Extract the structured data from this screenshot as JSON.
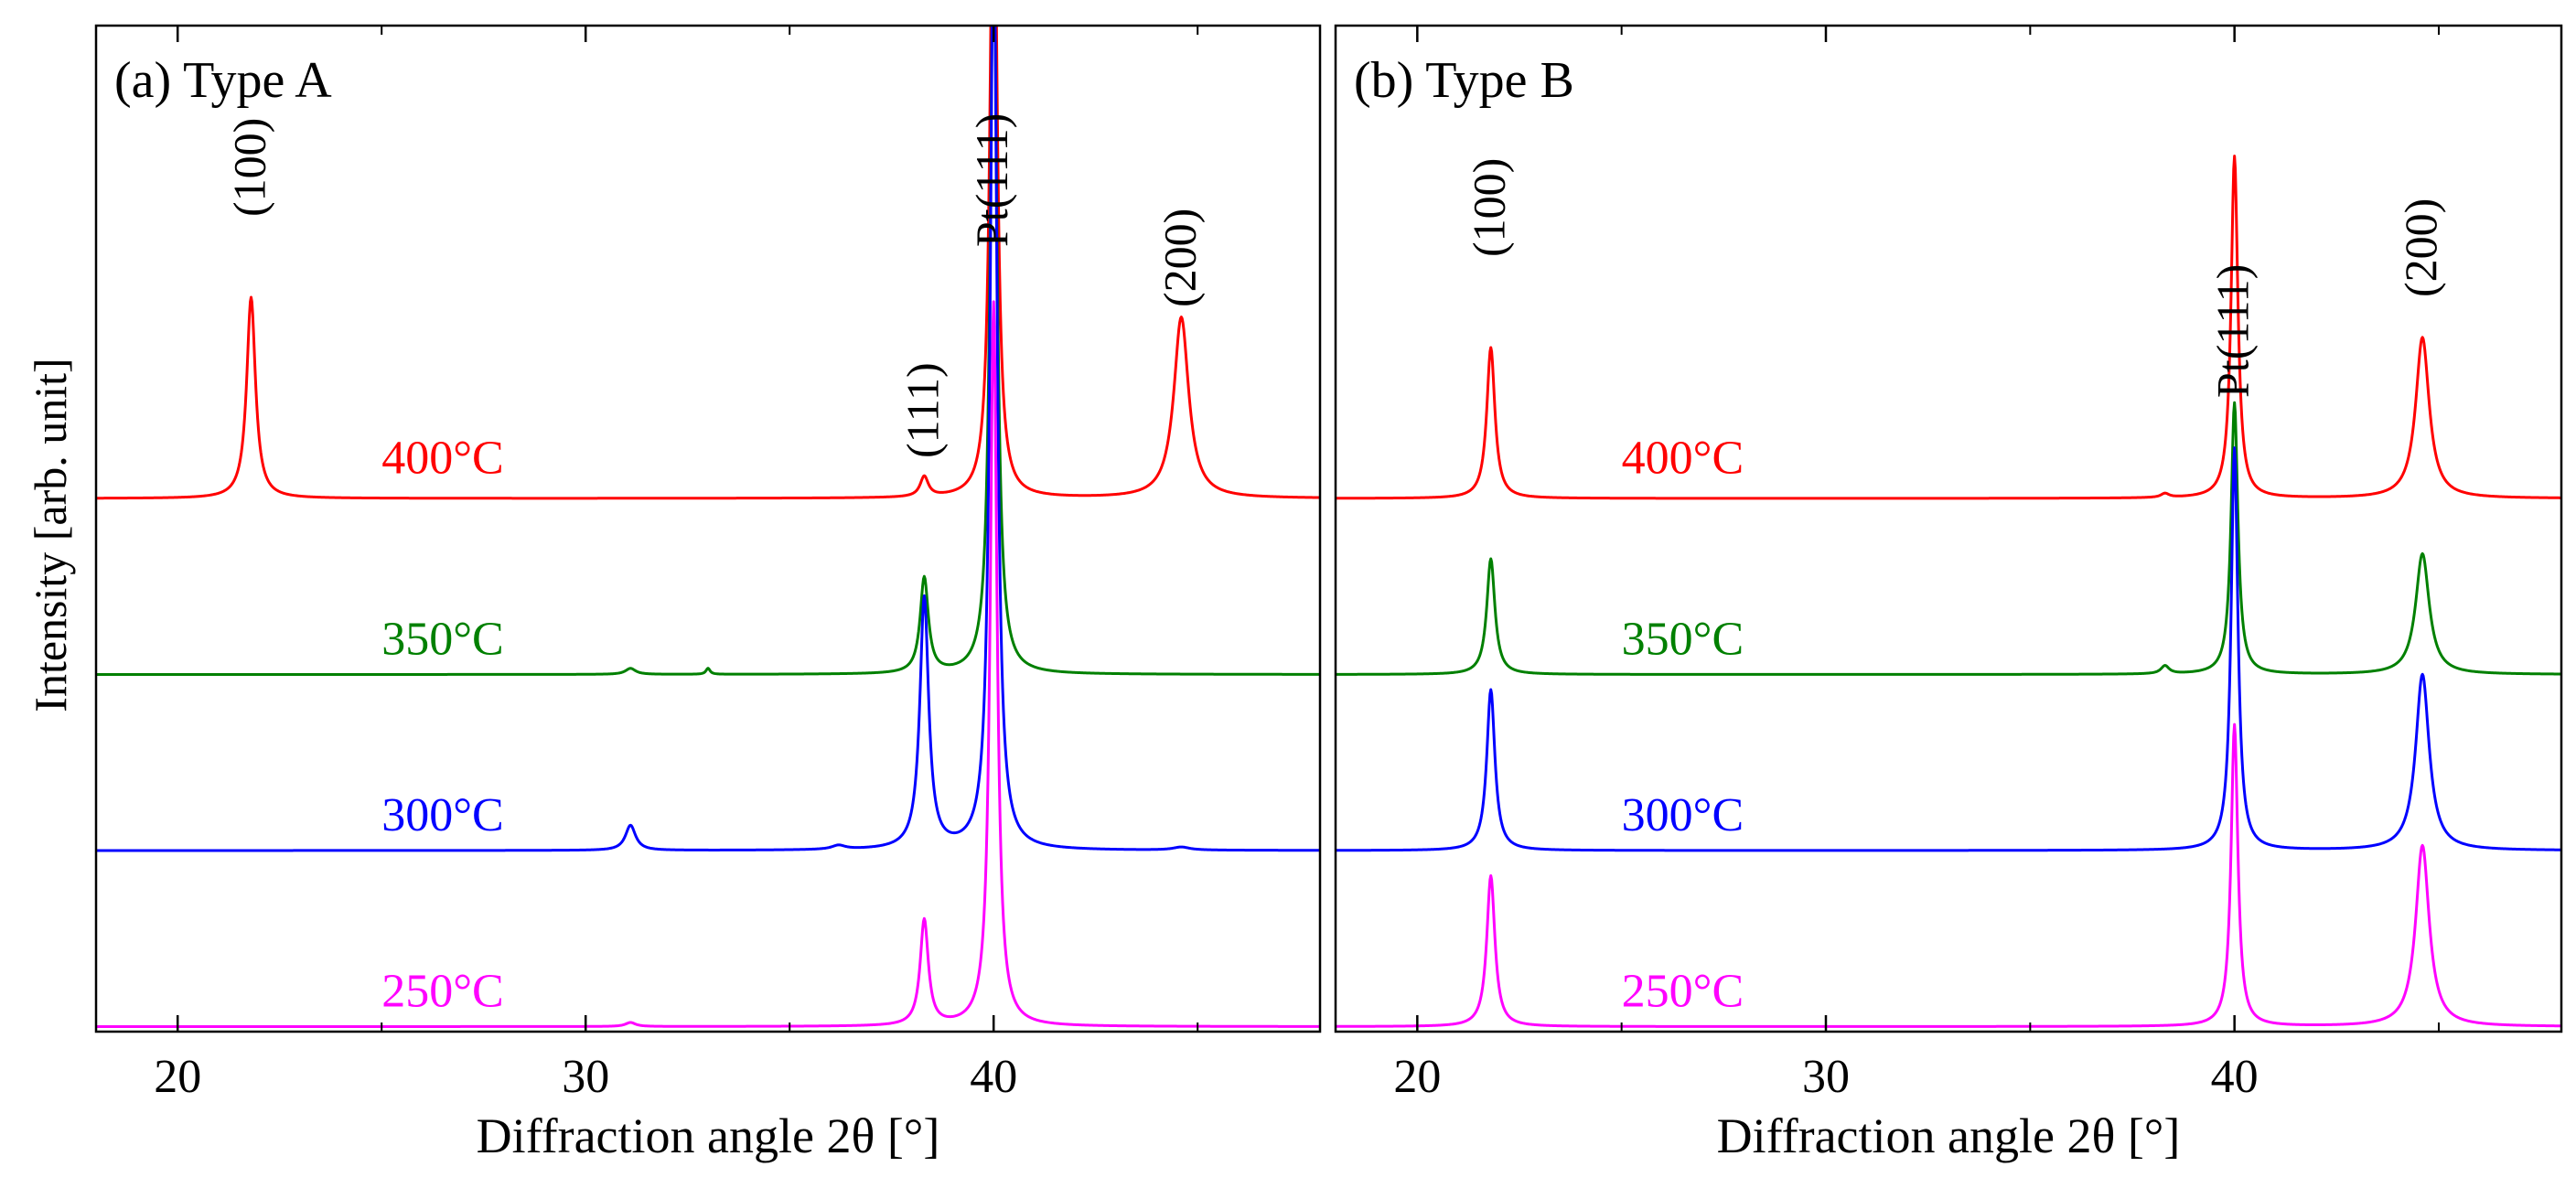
{
  "chart_data": {
    "type": "line",
    "ylabel": "Intensity [arb. unit]",
    "xlim": [
      18,
      48
    ],
    "x_ticks": [
      20,
      30,
      40
    ],
    "x_minor_step": 5,
    "ylim": [
      0,
      1
    ],
    "series_colors": {
      "400°C": "#ff0000",
      "350°C": "#008000",
      "300°C": "#0000ff",
      "250°C": "#ff00ff"
    },
    "series_baselines": {
      "400°C": 0.53,
      "350°C": 0.355,
      "300°C": 0.18,
      "250°C": 0.005
    },
    "panels": [
      {
        "id": "a",
        "title": "(a) Type A",
        "xlabel": "Diffraction angle 2θ [°]",
        "peak_labels": [
          {
            "text": "(100)",
            "x": 21.8,
            "y": 0.81
          },
          {
            "text": "(111)",
            "x": 38.3,
            "y": 0.57
          },
          {
            "text": "Pt(111)",
            "x": 40.0,
            "y": 0.78
          },
          {
            "text": "(200)",
            "x": 44.6,
            "y": 0.72
          }
        ],
        "temperature_labels": [
          {
            "text": "400°C",
            "x": 25.0,
            "y": 0.555
          },
          {
            "text": "350°C",
            "x": 25.0,
            "y": 0.375
          },
          {
            "text": "300°C",
            "x": 25.0,
            "y": 0.2
          },
          {
            "text": "250°C",
            "x": 25.0,
            "y": 0.025
          }
        ],
        "series": [
          {
            "name": "400°C",
            "peaks": [
              {
                "center": 21.8,
                "height": 0.2,
                "width": 0.13
              },
              {
                "center": 38.3,
                "height": 0.02,
                "width": 0.12
              },
              {
                "center": 40.0,
                "height": 0.7,
                "width": 0.1
              },
              {
                "center": 44.6,
                "height": 0.18,
                "width": 0.22
              }
            ]
          },
          {
            "name": "350°C",
            "peaks": [
              {
                "center": 31.1,
                "height": 0.006,
                "width": 0.15
              },
              {
                "center": 33.0,
                "height": 0.006,
                "width": 0.06
              },
              {
                "center": 38.3,
                "height": 0.095,
                "width": 0.12
              },
              {
                "center": 40.0,
                "height": 0.75,
                "width": 0.1
              }
            ]
          },
          {
            "name": "300°C",
            "peaks": [
              {
                "center": 31.1,
                "height": 0.025,
                "width": 0.15
              },
              {
                "center": 36.2,
                "height": 0.004,
                "width": 0.2
              },
              {
                "center": 38.3,
                "height": 0.25,
                "width": 0.13
              },
              {
                "center": 40.0,
                "height": 0.94,
                "width": 0.1
              },
              {
                "center": 44.6,
                "height": 0.003,
                "width": 0.25
              }
            ]
          },
          {
            "name": "250°C",
            "peaks": [
              {
                "center": 31.1,
                "height": 0.004,
                "width": 0.15
              },
              {
                "center": 38.3,
                "height": 0.105,
                "width": 0.12
              },
              {
                "center": 40.0,
                "height": 0.72,
                "width": 0.1
              }
            ]
          }
        ]
      },
      {
        "id": "b",
        "title": "(b) Type B",
        "xlabel": "Diffraction angle 2θ [°]",
        "peak_labels": [
          {
            "text": "(100)",
            "x": 21.8,
            "y": 0.77
          },
          {
            "text": "Pt(111)",
            "x": 40.0,
            "y": 0.63
          },
          {
            "text": "(200)",
            "x": 44.6,
            "y": 0.73
          }
        ],
        "temperature_labels": [
          {
            "text": "400°C",
            "x": 25.0,
            "y": 0.555
          },
          {
            "text": "350°C",
            "x": 25.0,
            "y": 0.375
          },
          {
            "text": "300°C",
            "x": 25.0,
            "y": 0.2
          },
          {
            "text": "250°C",
            "x": 25.0,
            "y": 0.025
          }
        ],
        "series": [
          {
            "name": "400°C",
            "peaks": [
              {
                "center": 21.8,
                "height": 0.15,
                "width": 0.12
              },
              {
                "center": 38.3,
                "height": 0.004,
                "width": 0.12
              },
              {
                "center": 40.0,
                "height": 0.34,
                "width": 0.1
              },
              {
                "center": 44.6,
                "height": 0.16,
                "width": 0.2
              }
            ]
          },
          {
            "name": "350°C",
            "peaks": [
              {
                "center": 21.8,
                "height": 0.115,
                "width": 0.12
              },
              {
                "center": 38.3,
                "height": 0.008,
                "width": 0.12
              },
              {
                "center": 40.0,
                "height": 0.27,
                "width": 0.1
              },
              {
                "center": 44.6,
                "height": 0.12,
                "width": 0.2
              }
            ]
          },
          {
            "name": "300°C",
            "peaks": [
              {
                "center": 21.8,
                "height": 0.16,
                "width": 0.12
              },
              {
                "center": 40.0,
                "height": 0.4,
                "width": 0.1
              },
              {
                "center": 44.6,
                "height": 0.175,
                "width": 0.2
              }
            ]
          },
          {
            "name": "250°C",
            "peaks": [
              {
                "center": 21.8,
                "height": 0.15,
                "width": 0.12
              },
              {
                "center": 40.0,
                "height": 0.3,
                "width": 0.1
              },
              {
                "center": 44.6,
                "height": 0.18,
                "width": 0.2
              }
            ]
          }
        ]
      }
    ]
  }
}
